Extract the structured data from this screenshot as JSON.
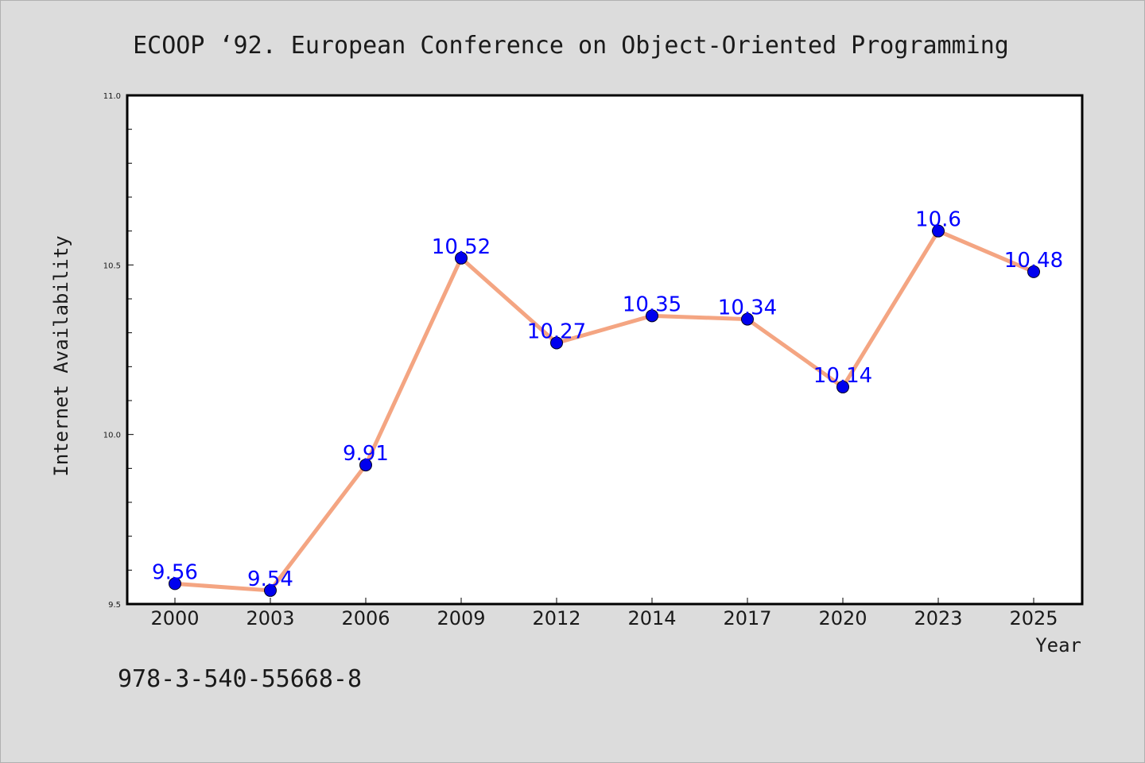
{
  "chart_data": {
    "type": "line",
    "title": "ECOOP  ‘92. European Conference on Object-Oriented Programming",
    "xlabel": "Year",
    "ylabel": "Internet Availability",
    "categories": [
      "2000",
      "2003",
      "2006",
      "2009",
      "2012",
      "2014",
      "2017",
      "2020",
      "2023",
      "2025"
    ],
    "values": [
      9.56,
      9.54,
      9.91,
      10.52,
      10.27,
      10.35,
      10.34,
      10.14,
      10.6,
      10.48
    ],
    "data_labels": [
      "9.56",
      "9.54",
      "9.91",
      "10.52",
      "10.27",
      "10.35",
      "10.34",
      "10.14",
      "10.6",
      "10.48"
    ],
    "ylim": [
      9.5,
      11.0
    ],
    "yticks": [
      "9.5",
      "10.0",
      "10.5",
      "11.0"
    ],
    "grid": false,
    "colors": {
      "line": "#f4a582",
      "marker": "#0000ee",
      "label": "#0000ff"
    }
  },
  "footer": {
    "isbn": "978-3-540-55668-8"
  }
}
